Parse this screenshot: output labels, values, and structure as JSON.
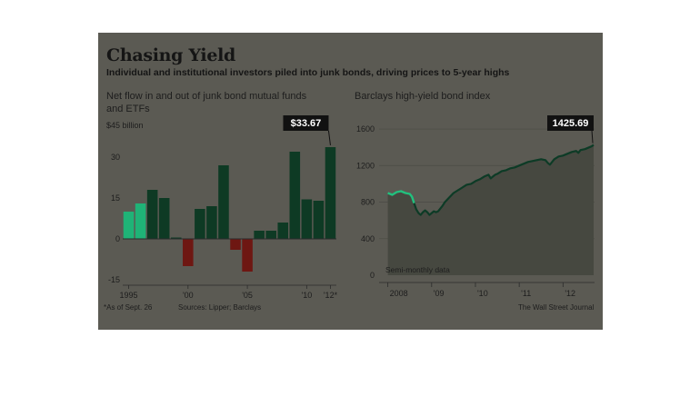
{
  "header": {
    "title": "Chasing Yield",
    "subtitle": "Individual and institutional investors piled into junk bonds, driving prices to 5-year highs"
  },
  "footer": {
    "note": "*As of Sept. 26",
    "sources": "Sources: Lipper; Barclays",
    "credit": "The Wall Street Journal"
  },
  "colors": {
    "background": "#5b5a53",
    "positive_bar": "#0e3a24",
    "negative_bar": "#6e1712",
    "highlight_bar": "#1fb377",
    "line_highlight": "#22c07e",
    "line": "#0d3b26",
    "area": "#464840",
    "callout": "#111111",
    "callout_text": "#ffffff",
    "text": "#1d1d1d"
  },
  "chart_data": [
    {
      "type": "bar",
      "title": "Net flow in and out of junk bond mutual funds and ETFs",
      "unit_label": "$45 billion",
      "categories": [
        1995,
        1996,
        1997,
        1998,
        1999,
        2000,
        2001,
        2002,
        2003,
        2004,
        2005,
        2006,
        2007,
        2008,
        2009,
        2010,
        2011,
        2012
      ],
      "values": [
        10,
        13,
        18,
        15,
        0.5,
        -10,
        11,
        12,
        27,
        -4,
        -12,
        3,
        3,
        6,
        32,
        14.5,
        14,
        33.67
      ],
      "highlighted_categories": [
        1995,
        1996
      ],
      "ylim": [
        -15,
        45
      ],
      "yticks": [
        -15,
        0,
        15,
        30
      ],
      "ytick_labels": [
        "-15",
        "0",
        "15",
        "30"
      ],
      "xtick_labels": [
        {
          "at": 1995,
          "label": "1995"
        },
        {
          "at": 2000,
          "label": "'00"
        },
        {
          "at": 2005,
          "label": "'05"
        },
        {
          "at": 2010,
          "label": "'10"
        },
        {
          "at": 2012,
          "label": "'12*"
        }
      ],
      "callout": {
        "at": 2012,
        "label": "$33.67"
      },
      "grid": false
    },
    {
      "type": "area",
      "title": "Barclays high-yield bond index",
      "x": [
        2008.0,
        2008.1,
        2008.2,
        2008.3,
        2008.4,
        2008.5,
        2008.55,
        2008.6,
        2008.65,
        2008.7,
        2008.75,
        2008.8,
        2008.85,
        2008.9,
        2008.95,
        2009.0,
        2009.05,
        2009.1,
        2009.15,
        2009.2,
        2009.25,
        2009.3,
        2009.4,
        2009.5,
        2009.6,
        2009.7,
        2009.8,
        2009.9,
        2010.0,
        2010.1,
        2010.2,
        2010.3,
        2010.35,
        2010.4,
        2010.45,
        2010.5,
        2010.6,
        2010.7,
        2010.8,
        2010.9,
        2011.0,
        2011.1,
        2011.2,
        2011.3,
        2011.4,
        2011.5,
        2011.6,
        2011.65,
        2011.7,
        2011.75,
        2011.8,
        2011.9,
        2012.0,
        2012.1,
        2012.2,
        2012.3,
        2012.35,
        2012.4,
        2012.5,
        2012.6,
        2012.65,
        2012.7
      ],
      "values": [
        900,
        880,
        910,
        920,
        900,
        890,
        860,
        790,
        720,
        680,
        660,
        690,
        710,
        690,
        660,
        680,
        700,
        690,
        700,
        730,
        760,
        800,
        850,
        900,
        930,
        960,
        990,
        1000,
        1030,
        1050,
        1080,
        1100,
        1060,
        1080,
        1100,
        1110,
        1140,
        1150,
        1170,
        1180,
        1200,
        1220,
        1240,
        1250,
        1260,
        1270,
        1260,
        1230,
        1210,
        1240,
        1270,
        1300,
        1310,
        1330,
        1350,
        1360,
        1340,
        1370,
        1380,
        1400,
        1410,
        1425.69
      ],
      "highlight_range": [
        2008.0,
        2008.6
      ],
      "ylim": [
        0,
        1800
      ],
      "yticks": [
        0,
        400,
        800,
        1200,
        1600
      ],
      "ytick_labels": [
        "0",
        "400",
        "800",
        "1200",
        "1600"
      ],
      "xtick_labels": [
        {
          "at": 2008,
          "label": "2008"
        },
        {
          "at": 2009,
          "label": "'09"
        },
        {
          "at": 2010,
          "label": "'10"
        },
        {
          "at": 2011,
          "label": "'11"
        },
        {
          "at": 2012,
          "label": "'12"
        }
      ],
      "callout": {
        "label": "1425.69"
      },
      "annotation": "Semi-monthly data",
      "grid": true
    }
  ]
}
